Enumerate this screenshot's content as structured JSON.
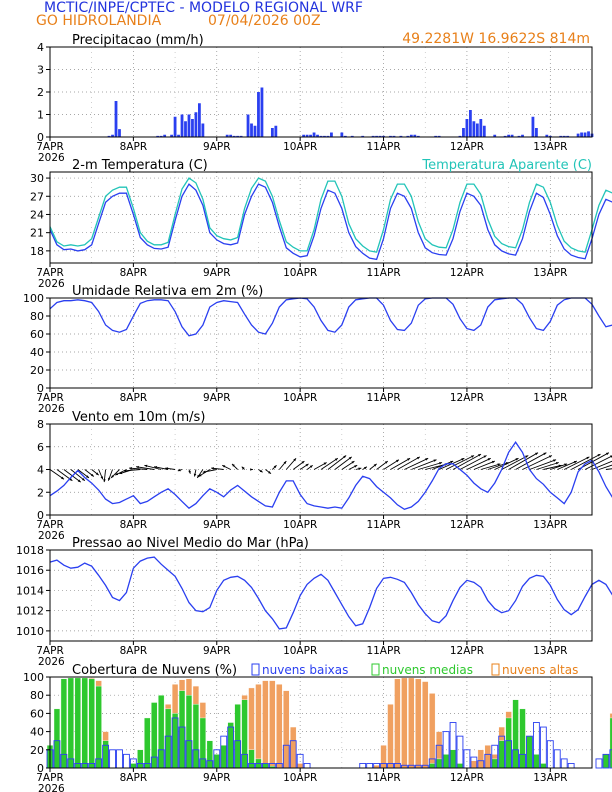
{
  "header": {
    "line1": "MCTIC/INPE/CPTEC - MODELO REGIONAL WRF",
    "line2_location": "GO HIDROLANDIA",
    "line2_run": "07/04/2026 00Z",
    "coords": "49.2281W  16.9622S  814m"
  },
  "colors": {
    "title_blue": "#2233dd",
    "orange": "#e8801a",
    "blue_series": "#2a3ff0",
    "cyan_series": "#22c4b8",
    "green_bars": "#2ec82e",
    "orange_bars": "#f0a060",
    "wind_arrows": "#000000"
  },
  "x_axis": {
    "tick_labels": [
      "7APR",
      "8APR",
      "9APR",
      "10APR",
      "11APR",
      "12APR",
      "13APR"
    ],
    "year_label": "2026",
    "hours_total": 156
  },
  "chart_data": [
    {
      "id": "precip",
      "type": "bar",
      "title": "Precipitacao (mm/h)",
      "ylim": [
        0,
        4
      ],
      "yticks": [
        0,
        1,
        2,
        3,
        4
      ],
      "grid": true,
      "x_hours": [
        17,
        18,
        19,
        20,
        31,
        32,
        33,
        35,
        36,
        37,
        38,
        39,
        40,
        41,
        42,
        43,
        44,
        51,
        52,
        53,
        54,
        55,
        57,
        58,
        59,
        60,
        61,
        64,
        65,
        73,
        74,
        75,
        76,
        77,
        78,
        79,
        80,
        81,
        84,
        85,
        87,
        90,
        93,
        94,
        95,
        96,
        98,
        99,
        101,
        103,
        104,
        105,
        106,
        111,
        112,
        118,
        119,
        120,
        121,
        122,
        123,
        124,
        125,
        128,
        131,
        132,
        133,
        135,
        136,
        139,
        140,
        143,
        144,
        147,
        148,
        149,
        152,
        153,
        154,
        155,
        156
      ],
      "values": [
        0.05,
        0.1,
        1.6,
        0.35,
        0.05,
        0.05,
        0.1,
        0.1,
        0.9,
        0.1,
        1.0,
        0.7,
        1.0,
        0.8,
        1.1,
        1.5,
        0.6,
        0.1,
        0.1,
        0.05,
        0.05,
        0.05,
        1.0,
        0.6,
        0.5,
        2.0,
        2.2,
        0.4,
        0.5,
        0.1,
        0.1,
        0.1,
        0.2,
        0.1,
        0.05,
        0.05,
        0.05,
        0.2,
        0.2,
        0.05,
        0.05,
        0.05,
        0.05,
        0.05,
        0.05,
        0.05,
        0.05,
        0.05,
        0.05,
        0.05,
        0.1,
        0.1,
        0.05,
        0.05,
        0.05,
        0.05,
        0.4,
        0.8,
        1.2,
        0.7,
        0.6,
        0.8,
        0.5,
        0.1,
        0.05,
        0.1,
        0.1,
        0.05,
        0.1,
        0.9,
        0.4,
        0.1,
        0.05,
        0.05,
        0.05,
        0.05,
        0.15,
        0.2,
        0.2,
        0.25,
        0.15
      ]
    },
    {
      "id": "temp",
      "type": "line",
      "title": "2-m Temperatura (C)",
      "legend_right": "Temperatura Aparente (C)",
      "ylim": [
        16,
        31
      ],
      "yticks": [
        18,
        21,
        24,
        27,
        30
      ],
      "grid": true,
      "x_hours_step": 2,
      "series": [
        {
          "color_key": "blue_series",
          "values": [
            21.5,
            19.0,
            18.2,
            18.3,
            18.0,
            18.2,
            19.0,
            22.5,
            26.0,
            27.0,
            27.5,
            27.5,
            24.0,
            20.2,
            19.0,
            18.4,
            18.3,
            18.6,
            23.0,
            27.0,
            29.0,
            28.0,
            25.5,
            21.0,
            19.8,
            19.2,
            19.0,
            19.3,
            24.0,
            27.0,
            29.0,
            28.5,
            26.0,
            22.0,
            18.5,
            17.6,
            17.0,
            17.2,
            20.5,
            25.0,
            28.0,
            27.5,
            25.0,
            21.0,
            18.7,
            17.6,
            16.8,
            16.6,
            20.0,
            25.0,
            27.5,
            27.0,
            25.0,
            21.0,
            18.5,
            17.7,
            17.4,
            17.3,
            20.0,
            24.5,
            27.5,
            27.0,
            25.5,
            21.5,
            19.0,
            18.0,
            17.5,
            17.3,
            20.0,
            24.5,
            27.5,
            26.8,
            24.0,
            20.5,
            18.3,
            17.3,
            16.9,
            16.7,
            20.0,
            24.0,
            26.5,
            26.0,
            22.0
          ]
        },
        {
          "color_key": "cyan_series",
          "values": [
            22.0,
            19.5,
            18.8,
            19.0,
            18.8,
            19.0,
            20.0,
            23.5,
            27.0,
            28.0,
            28.5,
            28.5,
            25.0,
            21.0,
            19.6,
            19.0,
            19.0,
            19.4,
            24.0,
            28.2,
            30.0,
            29.2,
            26.5,
            21.8,
            20.5,
            20.0,
            19.8,
            20.2,
            25.0,
            28.3,
            30.0,
            29.5,
            27.0,
            23.0,
            19.5,
            18.6,
            18.0,
            18.0,
            21.5,
            26.5,
            29.5,
            29.5,
            27.0,
            22.5,
            20.0,
            18.8,
            18.0,
            17.8,
            21.5,
            26.5,
            29.0,
            29.0,
            27.0,
            22.8,
            20.0,
            19.0,
            18.6,
            18.5,
            21.5,
            26.0,
            29.0,
            29.0,
            27.3,
            23.2,
            20.4,
            19.2,
            18.7,
            18.5,
            21.5,
            26.0,
            29.0,
            28.5,
            26.0,
            22.2,
            19.6,
            18.5,
            18.0,
            17.8,
            21.5,
            25.5,
            28.0,
            27.5,
            23.5
          ]
        }
      ]
    },
    {
      "id": "rh",
      "type": "line",
      "title": "Umidade Relativa em 2m (%)",
      "ylim": [
        0,
        100
      ],
      "yticks": [
        0,
        20,
        40,
        60,
        80,
        100
      ],
      "grid": true,
      "x_hours_step": 2,
      "series": [
        {
          "color_key": "blue_series",
          "values": [
            88,
            95,
            97,
            97,
            98,
            97,
            95,
            85,
            70,
            64,
            62,
            65,
            80,
            94,
            97,
            98,
            98,
            97,
            85,
            68,
            58,
            60,
            70,
            90,
            95,
            97,
            96,
            95,
            82,
            70,
            62,
            60,
            72,
            90,
            98,
            99,
            100,
            99,
            90,
            75,
            64,
            62,
            70,
            90,
            98,
            99,
            100,
            100,
            92,
            75,
            65,
            64,
            72,
            92,
            99,
            100,
            100,
            100,
            93,
            77,
            66,
            64,
            70,
            90,
            98,
            99,
            100,
            100,
            93,
            78,
            66,
            64,
            74,
            92,
            98,
            100,
            100,
            100,
            93,
            80,
            68,
            70,
            92
          ]
        }
      ]
    },
    {
      "id": "wind",
      "type": "line",
      "title": "Vento em 10m (m/s)",
      "ylim": [
        0,
        8
      ],
      "yticks": [
        0,
        2,
        4,
        6,
        8
      ],
      "grid": true,
      "x_hours_step": 2,
      "series": [
        {
          "color_key": "blue_series",
          "values": [
            1.7,
            2.1,
            2.6,
            3.3,
            3.9,
            3.3,
            2.8,
            2.2,
            1.4,
            1.0,
            1.1,
            1.4,
            1.7,
            1.0,
            1.2,
            1.6,
            2.0,
            2.3,
            1.8,
            1.2,
            0.6,
            1.0,
            1.7,
            2.3,
            2.0,
            1.6,
            2.2,
            2.6,
            2.1,
            1.6,
            1.2,
            0.8,
            0.7,
            2.0,
            3.0,
            3.0,
            1.8,
            1.0,
            0.8,
            0.7,
            0.6,
            0.7,
            0.6,
            1.5,
            2.6,
            3.4,
            3.2,
            2.5,
            2.0,
            1.5,
            0.9,
            0.5,
            0.7,
            1.2,
            2.0,
            3.0,
            4.1,
            4.5,
            4.5,
            4.0,
            3.5,
            2.8,
            2.3,
            2.0,
            2.8,
            4.0,
            5.5,
            6.4,
            5.5,
            4.0,
            3.2,
            2.7,
            2.0,
            1.5,
            1.0,
            2.0,
            3.8,
            4.5,
            4.8,
            3.8,
            2.5,
            1.5,
            1.0
          ]
        }
      ],
      "arrows": {
        "baseline": 4,
        "note": "",
        "u": [
          2.0,
          2.2,
          2.4,
          2.0,
          1.6,
          1.3,
          1.0,
          0.6,
          -0.2,
          -0.6,
          -1.2,
          -1.6,
          -2.0,
          -2.4,
          -2.6,
          -2.6,
          -2.4,
          -2.0,
          -1.4,
          -0.6,
          0.2,
          -0.2,
          -0.8,
          -1.6,
          -2.0,
          -1.8,
          -1.2,
          -0.8,
          -0.4,
          0.2,
          0.6,
          0.8,
          0.6,
          1.0,
          1.4,
          1.6,
          1.2,
          0.8,
          1.8,
          2.4,
          2.6,
          2.4,
          1.8,
          1.2,
          0.8,
          0.6,
          1.0,
          1.6,
          2.2,
          2.8,
          3.2,
          3.4,
          3.6,
          3.4,
          3.2,
          3.0,
          3.6,
          4.0,
          4.0,
          3.8,
          3.4,
          3.0,
          2.8,
          3.0,
          3.4,
          3.8,
          4.2,
          4.4,
          4.2,
          3.8,
          3.2,
          2.6,
          2.4,
          2.8,
          3.6,
          4.2,
          4.4,
          4.0,
          3.4,
          2.4,
          1.6,
          0.8,
          0.4
        ],
        "v": [
          -1.4,
          -1.6,
          -1.8,
          -1.6,
          -1.2,
          -1.0,
          -0.8,
          -1.4,
          -1.8,
          -1.6,
          -1.2,
          -0.8,
          -0.6,
          -0.2,
          0.2,
          0.4,
          0.6,
          0.4,
          0.2,
          -0.2,
          -0.6,
          -1.0,
          -1.2,
          -1.0,
          -0.4,
          0.2,
          0.6,
          0.8,
          0.4,
          0.0,
          -0.4,
          -0.6,
          0.6,
          1.2,
          1.6,
          1.2,
          0.8,
          0.6,
          1.0,
          1.6,
          2.0,
          1.8,
          1.2,
          0.6,
          0.2,
          0.4,
          0.8,
          1.2,
          1.4,
          1.6,
          1.8,
          1.6,
          1.4,
          1.0,
          0.8,
          1.2,
          1.6,
          2.0,
          2.2,
          2.0,
          1.6,
          1.2,
          0.8,
          1.0,
          1.6,
          2.0,
          2.4,
          2.4,
          2.0,
          1.4,
          1.0,
          0.6,
          0.8,
          1.2,
          1.8,
          2.2,
          2.4,
          2.0,
          1.4,
          0.8,
          0.2,
          -0.2,
          -0.6
        ]
      }
    },
    {
      "id": "pressure",
      "type": "line",
      "title": "Pressao ao Nivel Medio do Mar (hPa)",
      "ylim": [
        1009,
        1018
      ],
      "yticks": [
        1010,
        1012,
        1014,
        1016,
        1018
      ],
      "grid": true,
      "x_hours_step": 2,
      "series": [
        {
          "color_key": "blue_series",
          "values": [
            1016.8,
            1017.0,
            1016.5,
            1016.2,
            1016.3,
            1016.7,
            1016.4,
            1015.5,
            1014.5,
            1013.3,
            1013.0,
            1013.8,
            1016.2,
            1016.9,
            1017.2,
            1017.3,
            1016.6,
            1016.0,
            1015.4,
            1014.2,
            1012.8,
            1012.0,
            1011.9,
            1012.3,
            1014.0,
            1015.0,
            1015.3,
            1015.4,
            1015.0,
            1014.3,
            1013.2,
            1012.0,
            1011.2,
            1010.2,
            1010.3,
            1011.8,
            1013.5,
            1014.6,
            1015.2,
            1015.6,
            1015.0,
            1013.8,
            1012.6,
            1011.4,
            1010.5,
            1010.7,
            1012.3,
            1014.2,
            1015.2,
            1015.3,
            1015.1,
            1014.8,
            1013.8,
            1012.6,
            1011.7,
            1011.0,
            1010.8,
            1011.5,
            1013.0,
            1014.3,
            1015.0,
            1014.8,
            1014.3,
            1013.0,
            1012.2,
            1011.8,
            1012.0,
            1013.0,
            1014.4,
            1015.2,
            1015.5,
            1015.4,
            1014.5,
            1013.1,
            1012.1,
            1011.6,
            1012.1,
            1013.4,
            1014.6,
            1015.0,
            1014.6,
            1013.5,
            1012.1
          ]
        }
      ]
    },
    {
      "id": "clouds",
      "type": "bar",
      "title": "Cobertura de Nuvens (%)",
      "legend": [
        "nuvens baixas",
        "nuvens medias",
        "nuvens altas"
      ],
      "ylim": [
        0,
        100
      ],
      "yticks": [
        0,
        20,
        40,
        60,
        80,
        100
      ],
      "grid": true,
      "x_hours_step": 2,
      "series": [
        {
          "name": "nuvens altas",
          "color_key": "orange_bars",
          "values": [
            20,
            35,
            95,
            98,
            98,
            99,
            99,
            96,
            40,
            0,
            0,
            0,
            0,
            5,
            12,
            35,
            55,
            70,
            92,
            97,
            98,
            90,
            72,
            25,
            8,
            10,
            25,
            60,
            80,
            88,
            92,
            96,
            96,
            92,
            85,
            45,
            5,
            0,
            0,
            0,
            0,
            0,
            0,
            0,
            0,
            0,
            0,
            3,
            25,
            70,
            98,
            99,
            99,
            98,
            95,
            82,
            40,
            12,
            0,
            0,
            0,
            8,
            20,
            25,
            15,
            45,
            62,
            72,
            28,
            15,
            0,
            0,
            0,
            0,
            0,
            0,
            0,
            0,
            0,
            0,
            10,
            60,
            98
          ]
        },
        {
          "name": "nuvens medias",
          "color_key": "green_bars",
          "values": [
            25,
            65,
            98,
            99,
            99,
            99,
            98,
            90,
            30,
            0,
            0,
            0,
            5,
            20,
            55,
            72,
            80,
            65,
            60,
            85,
            80,
            70,
            55,
            30,
            15,
            25,
            50,
            70,
            75,
            20,
            10,
            5,
            2,
            0,
            0,
            0,
            0,
            0,
            0,
            0,
            0,
            0,
            0,
            0,
            0,
            0,
            0,
            0,
            0,
            0,
            0,
            0,
            0,
            0,
            0,
            5,
            10,
            15,
            20,
            5,
            0,
            0,
            0,
            0,
            10,
            30,
            55,
            75,
            65,
            35,
            15,
            5,
            0,
            0,
            0,
            0,
            0,
            0,
            0,
            0,
            15,
            55,
            45
          ]
        },
        {
          "name": "nuvens baixas",
          "color_key": "blue_series",
          "values": [
            20,
            30,
            15,
            10,
            5,
            5,
            5,
            10,
            25,
            20,
            20,
            15,
            10,
            5,
            5,
            12,
            20,
            35,
            55,
            45,
            30,
            20,
            10,
            8,
            20,
            35,
            45,
            30,
            15,
            5,
            5,
            5,
            5,
            5,
            25,
            30,
            15,
            5,
            0,
            0,
            0,
            0,
            0,
            0,
            0,
            5,
            5,
            5,
            5,
            5,
            5,
            3,
            3,
            3,
            3,
            10,
            25,
            40,
            50,
            35,
            20,
            12,
            8,
            15,
            25,
            35,
            30,
            20,
            15,
            35,
            50,
            45,
            30,
            20,
            10,
            5,
            0,
            0,
            0,
            10,
            15,
            20,
            45
          ]
        }
      ]
    }
  ]
}
